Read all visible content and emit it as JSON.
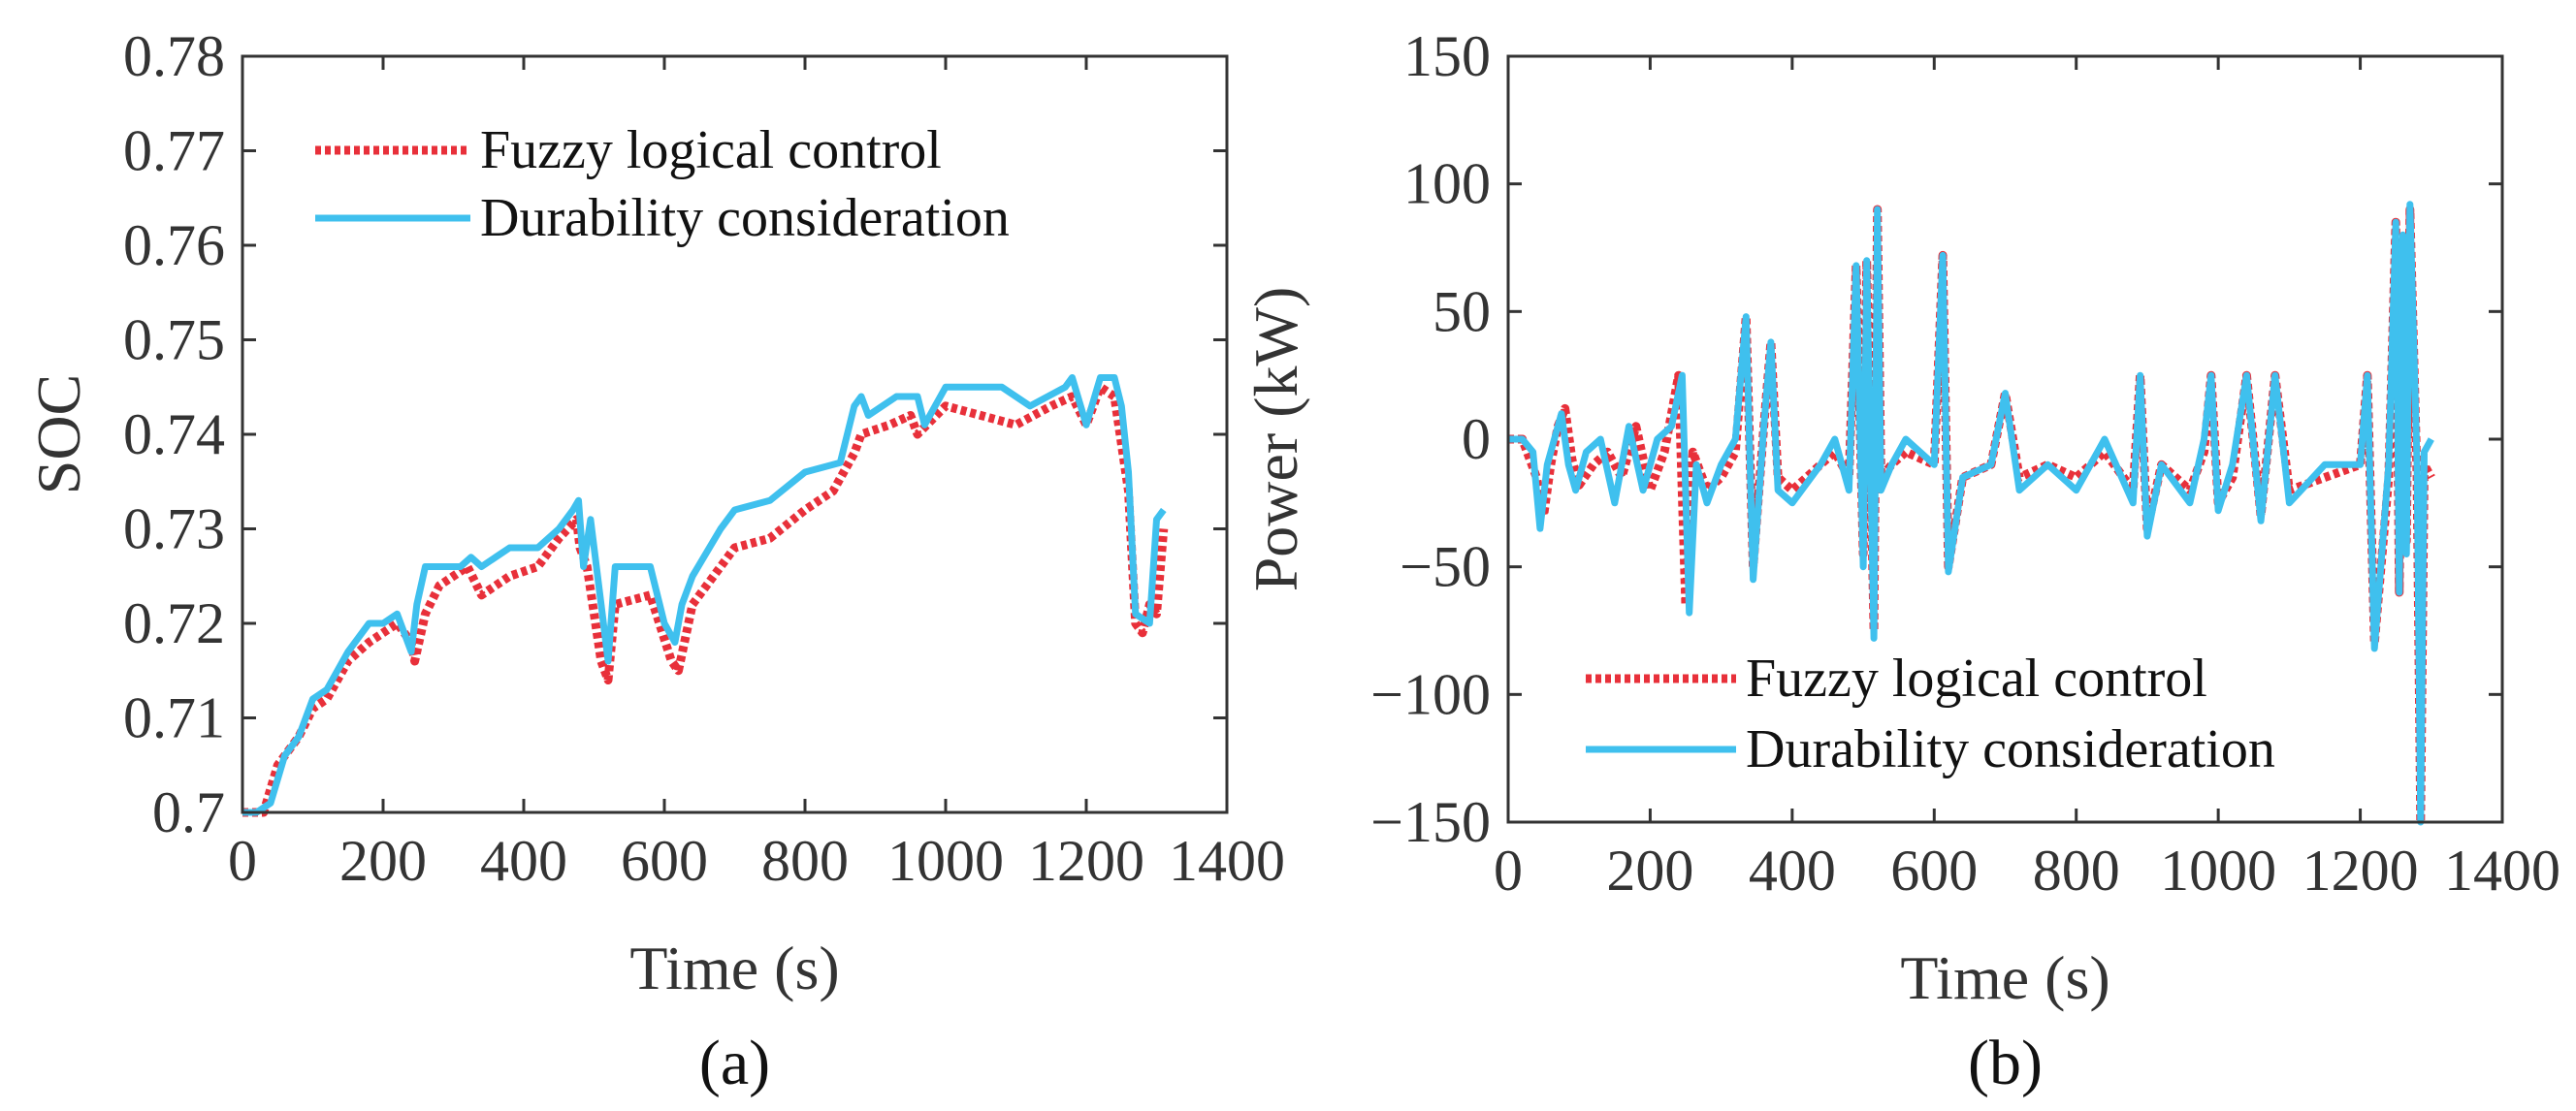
{
  "chart_data": [
    {
      "type": "line",
      "panel_label": "(a)",
      "xlabel": "Time (s)",
      "ylabel": "SOC",
      "xlim": [
        0,
        1400
      ],
      "ylim": [
        0.7,
        0.78
      ],
      "xticks": [
        0,
        200,
        400,
        600,
        800,
        1000,
        1200,
        1400
      ],
      "xtick_labels": [
        "0",
        "200",
        "400",
        "600",
        "800",
        "1000",
        "1200",
        "1400"
      ],
      "yticks": [
        0.7,
        0.71,
        0.72,
        0.73,
        0.74,
        0.75,
        0.76,
        0.77,
        0.78
      ],
      "ytick_labels": [
        "0.7",
        "0.71",
        "0.72",
        "0.73",
        "0.74",
        "0.75",
        "0.76",
        "0.77",
        "0.78"
      ],
      "legend_position": "top-left",
      "series": [
        {
          "name": "Fuzzy logical control",
          "color": "#e8303a",
          "style": "dotted",
          "x": [
            0,
            30,
            50,
            80,
            100,
            120,
            150,
            180,
            200,
            220,
            240,
            245,
            260,
            280,
            300,
            320,
            340,
            380,
            420,
            450,
            475,
            480,
            490,
            510,
            520,
            530,
            580,
            610,
            620,
            640,
            680,
            700,
            750,
            800,
            840,
            870,
            880,
            920,
            950,
            960,
            1000,
            1050,
            1100,
            1150,
            1180,
            1200,
            1220,
            1240,
            1260,
            1270,
            1280,
            1290,
            1300,
            1310
          ],
          "values": [
            0.7,
            0.7,
            0.705,
            0.708,
            0.711,
            0.712,
            0.716,
            0.718,
            0.719,
            0.72,
            0.718,
            0.716,
            0.721,
            0.724,
            0.725,
            0.726,
            0.723,
            0.725,
            0.726,
            0.729,
            0.731,
            0.728,
            0.726,
            0.716,
            0.714,
            0.722,
            0.723,
            0.716,
            0.715,
            0.722,
            0.726,
            0.728,
            0.729,
            0.732,
            0.734,
            0.738,
            0.74,
            0.741,
            0.742,
            0.74,
            0.743,
            0.742,
            0.741,
            0.743,
            0.744,
            0.741,
            0.745,
            0.744,
            0.734,
            0.72,
            0.719,
            0.722,
            0.721,
            0.73
          ]
        },
        {
          "name": "Durability consideration",
          "color": "#3fc0ee",
          "style": "solid",
          "x": [
            0,
            20,
            40,
            60,
            80,
            100,
            120,
            150,
            180,
            200,
            220,
            240,
            248,
            260,
            280,
            310,
            325,
            340,
            380,
            420,
            450,
            470,
            478,
            485,
            495,
            510,
            520,
            530,
            580,
            600,
            615,
            625,
            640,
            680,
            700,
            750,
            800,
            850,
            870,
            880,
            890,
            930,
            960,
            970,
            1000,
            1080,
            1120,
            1170,
            1180,
            1200,
            1220,
            1240,
            1250,
            1260,
            1270,
            1290,
            1300,
            1310
          ],
          "values": [
            0.7,
            0.7,
            0.701,
            0.706,
            0.708,
            0.712,
            0.713,
            0.717,
            0.72,
            0.72,
            0.721,
            0.717,
            0.722,
            0.726,
            0.726,
            0.726,
            0.727,
            0.726,
            0.728,
            0.728,
            0.73,
            0.732,
            0.733,
            0.726,
            0.731,
            0.722,
            0.716,
            0.726,
            0.726,
            0.72,
            0.718,
            0.722,
            0.725,
            0.73,
            0.732,
            0.733,
            0.736,
            0.737,
            0.743,
            0.744,
            0.742,
            0.744,
            0.744,
            0.741,
            0.745,
            0.745,
            0.743,
            0.745,
            0.746,
            0.741,
            0.746,
            0.746,
            0.743,
            0.736,
            0.721,
            0.72,
            0.731,
            0.732
          ]
        }
      ]
    },
    {
      "type": "line",
      "panel_label": "(b)",
      "xlabel": "Time (s)",
      "ylabel": "Power (kW)",
      "xlim": [
        0,
        1400
      ],
      "ylim": [
        -150,
        150
      ],
      "xticks": [
        0,
        200,
        400,
        600,
        800,
        1000,
        1200,
        1400
      ],
      "xtick_labels": [
        "0",
        "200",
        "400",
        "600",
        "800",
        "1000",
        "1200",
        "1400"
      ],
      "yticks": [
        -150,
        -100,
        -50,
        0,
        50,
        100,
        150
      ],
      "ytick_labels": [
        "−150",
        "−100",
        "−50",
        "0",
        "50",
        "100",
        "150"
      ],
      "legend_position": "bottom-left",
      "series": [
        {
          "name": "Fuzzy logical control",
          "color": "#e8303a",
          "style": "dotted",
          "x": [
            0,
            20,
            40,
            50,
            60,
            70,
            80,
            90,
            100,
            120,
            140,
            160,
            180,
            200,
            220,
            240,
            250,
            260,
            280,
            300,
            320,
            335,
            345,
            360,
            370,
            380,
            400,
            440,
            460,
            480,
            490,
            500,
            505,
            515,
            520,
            525,
            540,
            560,
            600,
            612,
            620,
            640,
            680,
            700,
            720,
            760,
            800,
            840,
            880,
            890,
            900,
            920,
            960,
            980,
            990,
            1000,
            1020,
            1040,
            1060,
            1080,
            1100,
            1150,
            1200,
            1210,
            1220,
            1240,
            1250,
            1255,
            1260,
            1265,
            1270,
            1280,
            1285,
            1290,
            1300
          ],
          "values": [
            0,
            0,
            -15,
            -30,
            -10,
            5,
            12,
            -8,
            -18,
            -10,
            -5,
            -15,
            5,
            -20,
            -5,
            25,
            -65,
            -5,
            -20,
            -15,
            -5,
            48,
            -50,
            5,
            38,
            -15,
            -20,
            -10,
            -5,
            -15,
            68,
            -45,
            70,
            -75,
            90,
            -15,
            -10,
            -5,
            -10,
            72,
            -50,
            -15,
            -10,
            18,
            -15,
            -10,
            -15,
            -5,
            -20,
            25,
            -35,
            -10,
            -20,
            -5,
            25,
            -25,
            -15,
            25,
            -30,
            25,
            -20,
            -15,
            -10,
            25,
            -80,
            -15,
            85,
            -60,
            75,
            -40,
            90,
            -15,
            -150,
            -10,
            -15
          ]
        },
        {
          "name": "Durability consideration",
          "color": "#3fc0ee",
          "style": "solid",
          "x": [
            0,
            20,
            35,
            45,
            55,
            65,
            75,
            85,
            95,
            110,
            130,
            150,
            170,
            190,
            210,
            230,
            245,
            255,
            265,
            280,
            300,
            320,
            335,
            345,
            360,
            370,
            380,
            400,
            440,
            460,
            480,
            490,
            500,
            505,
            515,
            520,
            525,
            540,
            560,
            600,
            612,
            620,
            640,
            680,
            700,
            720,
            760,
            800,
            840,
            880,
            890,
            900,
            920,
            960,
            980,
            990,
            1000,
            1020,
            1040,
            1060,
            1080,
            1100,
            1150,
            1200,
            1210,
            1220,
            1240,
            1250,
            1255,
            1260,
            1265,
            1270,
            1280,
            1285,
            1290,
            1300
          ],
          "values": [
            0,
            0,
            -5,
            -35,
            -10,
            0,
            10,
            -10,
            -20,
            -5,
            0,
            -25,
            5,
            -20,
            0,
            5,
            25,
            -68,
            -10,
            -25,
            -10,
            0,
            48,
            -55,
            5,
            38,
            -20,
            -25,
            -10,
            0,
            -20,
            68,
            -50,
            70,
            -78,
            90,
            -20,
            -10,
            0,
            -10,
            72,
            -52,
            -15,
            -10,
            18,
            -20,
            -10,
            -20,
            0,
            -25,
            25,
            -38,
            -10,
            -25,
            0,
            25,
            -28,
            -10,
            25,
            -32,
            25,
            -25,
            -10,
            -10,
            25,
            -82,
            -10,
            85,
            -60,
            80,
            -45,
            92,
            -10,
            -150,
            -5,
            0
          ]
        }
      ]
    }
  ]
}
